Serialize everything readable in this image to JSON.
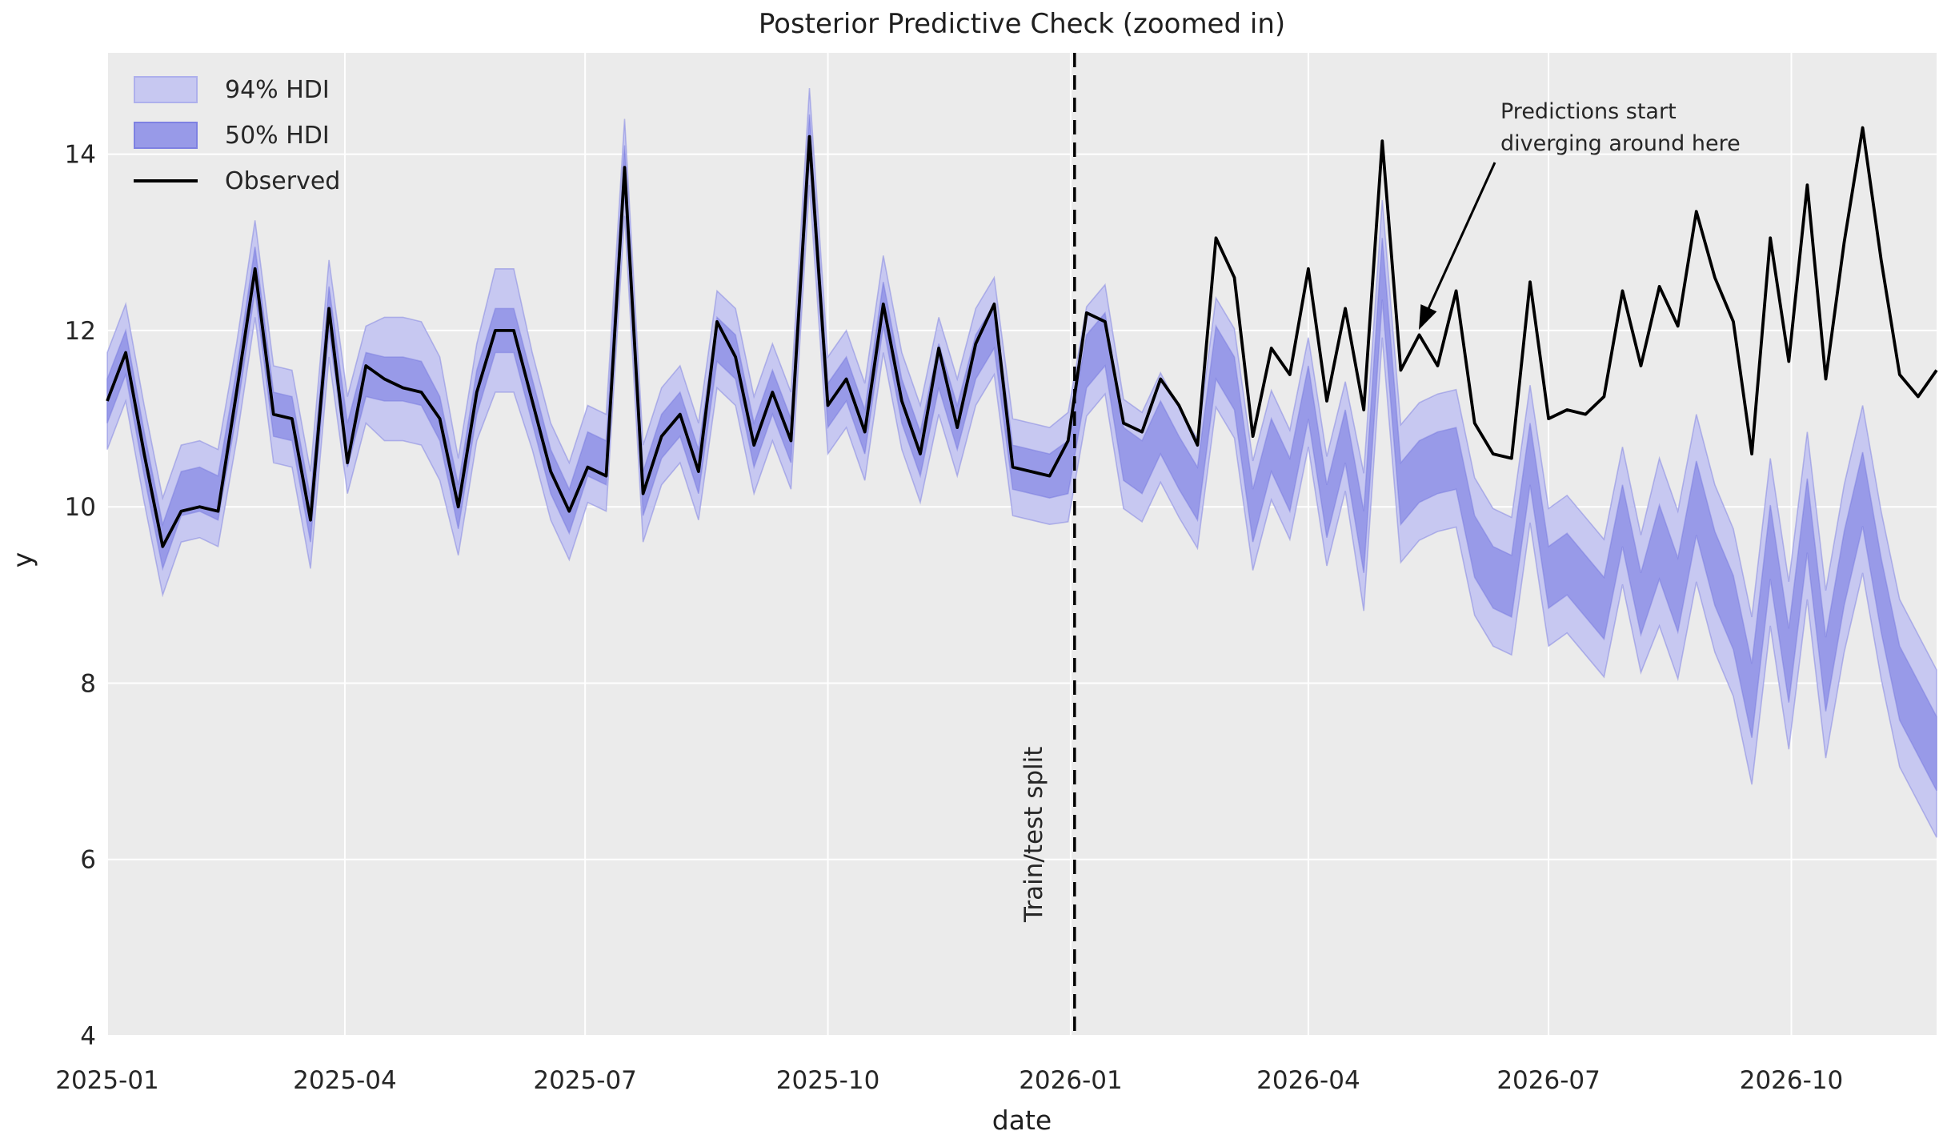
{
  "title": "Posterior Predictive Check (zoomed in)",
  "axes": {
    "xlabel": "date",
    "ylabel": "y",
    "y_ticks": [
      4,
      6,
      8,
      10,
      12,
      14
    ],
    "x_tick_labels": [
      "2025-01",
      "2025-04",
      "2025-07",
      "2025-10",
      "2026-01",
      "2026-04",
      "2026-07",
      "2026-10"
    ],
    "x_tick_weeks": [
      0,
      12.86,
      25.86,
      39.0,
      52.14,
      65.0,
      78.0,
      91.14
    ],
    "ylim": [
      4,
      15.15
    ],
    "xlim_weeks": [
      0,
      99
    ],
    "grid": true
  },
  "legend": {
    "items": [
      {
        "label": "94% HDI",
        "type": "patch",
        "fill": "#c7c8f1",
        "edge": "#aeb0ec"
      },
      {
        "label": "50% HDI",
        "type": "patch",
        "fill": "#989ae8",
        "edge": "#7e81e2"
      },
      {
        "label": "Observed",
        "type": "line",
        "color": "#000000"
      }
    ]
  },
  "split": {
    "label": "Train/test split",
    "week": 52.35
  },
  "annotation": {
    "line1": "Predictions start",
    "line2": "diverging around here"
  },
  "colors": {
    "figure_background": "#ffffff",
    "plot_background": "#ebebeb",
    "gridline": "#ffffff",
    "band_94": "#c7c8f1",
    "band_50": "#989ae8",
    "band_edge": "#7578dd",
    "observed_line": "#000000",
    "split_line": "#000000",
    "text": "#262626"
  },
  "chart_data": {
    "type": "line",
    "title": "Posterior Predictive Check (zoomed in)",
    "xlabel": "date",
    "ylabel": "y",
    "x_start_date": "2025-01-01",
    "x_step_days": 7,
    "n_points": 100,
    "split_index": 52,
    "legend_entries": [
      "94% HDI",
      "50% HDI",
      "Observed"
    ],
    "series": [
      {
        "name": "Observed",
        "values": [
          11.2,
          11.75,
          10.6,
          9.55,
          9.95,
          10.0,
          9.95,
          11.3,
          12.7,
          11.05,
          11.0,
          9.85,
          12.25,
          10.5,
          11.6,
          11.45,
          11.35,
          11.3,
          11.0,
          10.0,
          11.3,
          12.0,
          12.0,
          11.2,
          10.4,
          9.95,
          10.45,
          10.35,
          13.85,
          10.15,
          10.8,
          11.05,
          10.4,
          12.1,
          11.7,
          10.7,
          11.3,
          10.75,
          14.2,
          11.15,
          11.45,
          10.85,
          12.3,
          11.2,
          10.6,
          11.8,
          10.9,
          11.85,
          12.3,
          10.45,
          10.4,
          10.35,
          10.75,
          12.2,
          12.1,
          10.95,
          10.85,
          11.45,
          11.15,
          10.7,
          13.05,
          12.6,
          10.8,
          11.8,
          11.5,
          12.7,
          11.2,
          12.25,
          11.1,
          14.15,
          11.55,
          11.95,
          11.6,
          12.45,
          10.95,
          10.6,
          10.55,
          12.55,
          11.0,
          11.1,
          11.05,
          11.25,
          12.45,
          11.6,
          12.5,
          12.05,
          13.35,
          12.6,
          12.1,
          10.6,
          13.05,
          11.65,
          13.65,
          11.45,
          13.0,
          14.3,
          12.8,
          11.5,
          11.25,
          11.55
        ]
      },
      {
        "name": "94% HDI upper",
        "values": [
          11.75,
          12.3,
          11.15,
          10.1,
          10.7,
          10.75,
          10.65,
          11.85,
          13.25,
          11.6,
          11.55,
          10.4,
          12.8,
          11.25,
          12.05,
          12.15,
          12.15,
          12.1,
          11.7,
          10.55,
          11.85,
          12.7,
          12.7,
          11.75,
          10.95,
          10.5,
          11.15,
          11.05,
          14.4,
          10.7,
          11.35,
          11.6,
          10.95,
          12.45,
          12.25,
          11.25,
          11.85,
          11.3,
          14.75,
          11.7,
          12.0,
          11.4,
          12.85,
          11.75,
          11.15,
          12.15,
          11.45,
          12.25,
          12.6,
          11.0,
          10.95,
          10.9,
          11.07,
          12.27,
          12.52,
          11.22,
          11.07,
          11.52,
          11.12,
          10.77,
          12.37,
          12.02,
          10.52,
          11.32,
          10.87,
          11.92,
          10.57,
          11.42,
          10.38,
          13.48,
          10.93,
          11.18,
          11.28,
          11.33,
          10.33,
          9.98,
          9.88,
          11.38,
          9.98,
          10.13,
          9.88,
          9.63,
          10.68,
          9.68,
          10.55,
          9.95,
          11.05,
          10.25,
          9.75,
          8.75,
          10.55,
          9.15,
          10.85,
          9.05,
          10.25,
          11.15,
          9.95,
          8.95,
          8.55,
          8.15
        ]
      },
      {
        "name": "94% HDI lower",
        "values": [
          10.65,
          11.2,
          10.05,
          9.0,
          9.6,
          9.65,
          9.55,
          10.75,
          12.15,
          10.5,
          10.45,
          9.3,
          11.7,
          10.15,
          10.95,
          10.75,
          10.75,
          10.7,
          10.3,
          9.45,
          10.75,
          11.3,
          11.3,
          10.65,
          9.85,
          9.4,
          10.05,
          9.95,
          13.3,
          9.6,
          10.25,
          10.5,
          9.85,
          11.35,
          11.15,
          10.15,
          10.75,
          10.2,
          13.65,
          10.6,
          10.9,
          10.3,
          11.75,
          10.65,
          10.05,
          11.05,
          10.35,
          11.15,
          11.5,
          9.9,
          9.85,
          9.8,
          9.83,
          11.03,
          11.28,
          9.98,
          9.83,
          10.28,
          9.88,
          9.53,
          11.13,
          10.78,
          9.28,
          10.08,
          9.63,
          10.68,
          9.33,
          10.18,
          8.82,
          11.92,
          9.37,
          9.62,
          9.72,
          9.77,
          8.77,
          8.42,
          8.32,
          9.82,
          8.42,
          8.57,
          8.32,
          8.07,
          9.12,
          8.12,
          8.65,
          8.05,
          9.15,
          8.35,
          7.85,
          6.85,
          8.65,
          7.25,
          8.95,
          7.15,
          8.35,
          9.25,
          8.05,
          7.05,
          6.65,
          6.25
        ]
      },
      {
        "name": "50% HDI upper",
        "values": [
          11.45,
          12.0,
          10.85,
          9.8,
          10.4,
          10.45,
          10.35,
          11.55,
          12.95,
          11.3,
          11.25,
          10.1,
          12.5,
          10.95,
          11.75,
          11.7,
          11.7,
          11.65,
          11.25,
          10.25,
          11.55,
          12.25,
          12.25,
          11.45,
          10.65,
          10.2,
          10.85,
          10.75,
          14.1,
          10.4,
          11.05,
          11.3,
          10.65,
          12.15,
          11.95,
          10.95,
          11.55,
          11.0,
          14.45,
          11.4,
          11.7,
          11.1,
          12.55,
          11.45,
          10.85,
          11.85,
          11.15,
          11.95,
          12.3,
          10.7,
          10.65,
          10.6,
          10.75,
          11.95,
          12.2,
          10.9,
          10.75,
          11.2,
          10.8,
          10.45,
          12.05,
          11.7,
          10.2,
          11.0,
          10.55,
          11.6,
          10.25,
          11.1,
          9.95,
          13.05,
          10.5,
          10.75,
          10.85,
          10.9,
          9.9,
          9.55,
          9.45,
          10.95,
          9.55,
          9.7,
          9.45,
          9.2,
          10.25,
          9.25,
          10.02,
          9.42,
          10.52,
          9.72,
          9.22,
          8.22,
          10.02,
          8.62,
          10.32,
          8.52,
          9.72,
          10.62,
          9.42,
          8.42,
          8.02,
          7.62
        ]
      },
      {
        "name": "50% HDI lower",
        "values": [
          10.95,
          11.5,
          10.35,
          9.3,
          9.9,
          9.95,
          9.85,
          11.05,
          12.45,
          10.8,
          10.75,
          9.6,
          12.0,
          10.45,
          11.25,
          11.2,
          11.2,
          11.15,
          10.75,
          9.75,
          11.05,
          11.75,
          11.75,
          10.95,
          10.15,
          9.7,
          10.35,
          10.25,
          13.6,
          9.9,
          10.55,
          10.8,
          10.15,
          11.65,
          11.45,
          10.45,
          11.05,
          10.5,
          13.95,
          10.9,
          11.2,
          10.6,
          12.05,
          10.95,
          10.35,
          11.35,
          10.65,
          11.45,
          11.8,
          10.2,
          10.15,
          10.1,
          10.15,
          11.35,
          11.6,
          10.3,
          10.15,
          10.6,
          10.2,
          9.85,
          11.45,
          11.1,
          9.6,
          10.4,
          9.95,
          11.0,
          9.65,
          10.5,
          9.25,
          12.35,
          9.8,
          10.05,
          10.15,
          10.2,
          9.2,
          8.85,
          8.75,
          10.25,
          8.85,
          9.0,
          8.75,
          8.5,
          9.55,
          8.55,
          9.18,
          8.58,
          9.68,
          8.88,
          8.38,
          7.38,
          9.18,
          7.78,
          9.48,
          7.68,
          8.88,
          9.78,
          8.58,
          7.58,
          7.18,
          6.78
        ]
      }
    ]
  }
}
